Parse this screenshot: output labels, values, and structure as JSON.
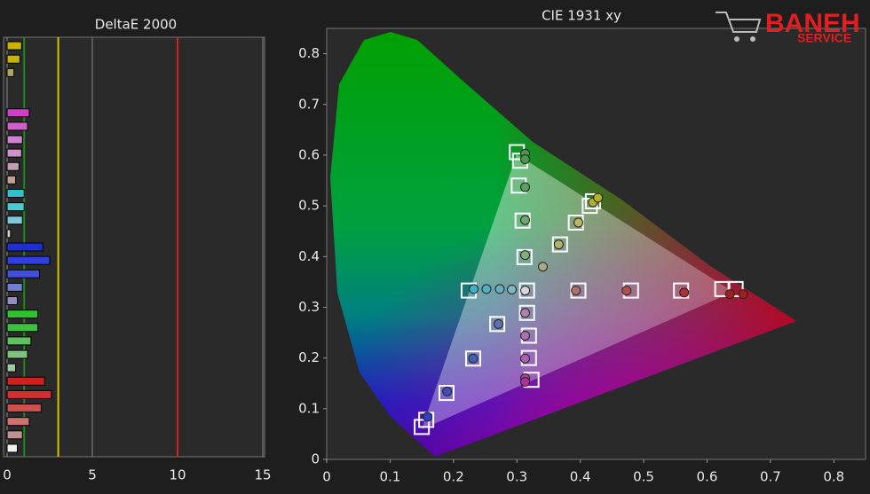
{
  "chart_data": [
    {
      "type": "bar",
      "orientation": "horizontal",
      "title": "DeltaE 2000",
      "categories": [
        null,
        null,
        null,
        null,
        null,
        null,
        null,
        null,
        null,
        null,
        null,
        null,
        null,
        null,
        null,
        null,
        null,
        null,
        null,
        null,
        null,
        null,
        null,
        null,
        null,
        null,
        null,
        null,
        null,
        null,
        null
      ],
      "values": [
        0.85,
        0.75,
        0.4,
        null,
        null,
        1.3,
        1.2,
        0.9,
        0.85,
        0.7,
        0.5,
        1.0,
        1.0,
        0.9,
        0.2,
        2.1,
        2.5,
        1.9,
        0.9,
        0.6,
        1.8,
        1.8,
        1.4,
        1.2,
        0.5,
        2.2,
        2.6,
        2.0,
        1.3,
        0.9,
        0.6
      ],
      "colors": [
        "#c8b400",
        "#c8b400",
        "#b0a860",
        null,
        null,
        "#d040c0",
        "#d060c8",
        "#d080d0",
        "#d090c8",
        "#c0a0b0",
        "#c0a090",
        "#30c0d0",
        "#50c8d0",
        "#80c8d8",
        "#d0d0d0",
        "#2030d0",
        "#3040e0",
        "#4050d8",
        "#7080d0",
        "#9090c0",
        "#30c030",
        "#40c040",
        "#60c060",
        "#80c080",
        "#a0c8a0",
        "#d02020",
        "#d03030",
        "#d05050",
        "#d07070",
        "#c09090",
        "#f0f0f0"
      ],
      "xlim": [
        0,
        15
      ],
      "xticks": [
        0,
        5,
        10,
        15
      ],
      "grid": true,
      "reference_lines": [
        {
          "value": 1,
          "color": "#1f8a1f"
        },
        {
          "value": 3,
          "color": "#d8c400"
        },
        {
          "value": 10,
          "color": "#d02020"
        }
      ]
    },
    {
      "type": "scatter",
      "title": "CIE 1931 xy",
      "xlim": [
        0,
        0.85
      ],
      "ylim": [
        0,
        0.85
      ],
      "xticks": [
        0,
        0.1,
        0.2,
        0.3,
        0.4,
        0.5,
        0.6,
        0.7,
        0.8
      ],
      "yticks": [
        0,
        0.1,
        0.2,
        0.3,
        0.4,
        0.5,
        0.6,
        0.7,
        0.8
      ],
      "series": [
        {
          "marker": "square",
          "color": "#ffffff",
          "x": [
            0.3,
            0.305,
            0.303,
            0.309,
            0.312,
            0.42,
            0.415,
            0.393,
            0.368,
            0.645,
            0.624,
            0.559,
            0.48,
            0.397,
            0.316,
            0.224,
            0.269,
            0.231,
            0.189,
            0.157,
            0.15,
            0.316,
            0.319,
            0.319,
            0.323
          ],
          "y": [
            0.606,
            0.589,
            0.54,
            0.471,
            0.399,
            0.509,
            0.5,
            0.467,
            0.424,
            0.336,
            0.336,
            0.333,
            0.333,
            0.333,
            0.333,
            0.333,
            0.267,
            0.199,
            0.131,
            0.078,
            0.064,
            0.289,
            0.244,
            0.2,
            0.157
          ]
        },
        {
          "marker": "circle",
          "x": [
            0.313,
            0.313,
            0.313,
            0.313,
            0.313,
            0.341,
            0.366,
            0.397,
            0.42,
            0.428,
            0.393,
            0.473,
            0.564,
            0.636,
            0.657,
            0.313,
            0.292,
            0.273,
            0.252,
            0.232,
            0.271,
            0.231,
            0.19,
            0.159,
            0.313,
            0.313,
            0.313,
            0.313,
            0.313
          ],
          "y": [
            0.603,
            0.592,
            0.537,
            0.472,
            0.403,
            0.38,
            0.424,
            0.467,
            0.507,
            0.516,
            0.333,
            0.333,
            0.329,
            0.326,
            0.326,
            0.333,
            0.335,
            0.336,
            0.336,
            0.336,
            0.267,
            0.199,
            0.134,
            0.084,
            0.289,
            0.244,
            0.199,
            0.16,
            0.153
          ],
          "colors": [
            "#4a9a4a",
            "#4a9a4a",
            "#5aa05a",
            "#70a870",
            "#80b080",
            "#a8a880",
            "#b0b070",
            "#b8b860",
            "#b0b030",
            "#b8b020",
            "#b07070",
            "#b05050",
            "#b03030",
            "#a02020",
            "#a02020",
            "#d8d8d8",
            "#80b8c0",
            "#60b0c0",
            "#50b0c0",
            "#40b0c8",
            "#6070b0",
            "#4060b0",
            "#4050b0",
            "#3040c0",
            "#b080b0",
            "#b070b0",
            "#b060b0",
            "#b040a0",
            "#b030a0"
          ]
        }
      ]
    }
  ],
  "watermark": {
    "line1": "BANEH",
    "line2": "SERVICE"
  }
}
